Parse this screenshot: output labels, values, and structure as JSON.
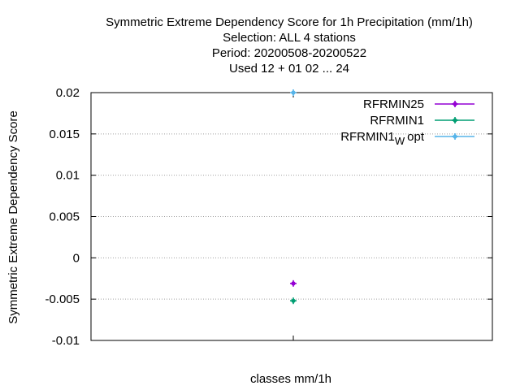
{
  "chart_data": {
    "type": "scatter",
    "title": [
      "Symmetric Extreme Dependency Score  for 1h Precipitation (mm/1h)",
      "Selection: ALL      4 stations",
      "Period: 20200508-20200522",
      "Used  12 + 01 02 ... 24"
    ],
    "xlabel": "classes mm/1h",
    "ylabel": "Symmetric Extreme Dependency Score",
    "ylim": [
      -0.01,
      0.02
    ],
    "yticks": [
      -0.01,
      -0.005,
      0,
      0.005,
      0.01,
      0.015,
      0.02
    ],
    "ytick_labels": [
      "-0.01",
      "-0.005",
      "0",
      "0.005",
      "0.01",
      "0.015",
      "0.02"
    ],
    "grid": true,
    "legend_position": "top-right",
    "series": [
      {
        "name": "RFRMIN25",
        "name_sub": "",
        "name_suffix": "",
        "color": "#9400d3",
        "values": [
          -0.0031
        ]
      },
      {
        "name": "RFRMIN1",
        "name_sub": "",
        "name_suffix": "",
        "color": "#009e73",
        "values": [
          -0.0052
        ]
      },
      {
        "name": "RFRMIN1",
        "name_sub": "W",
        "name_suffix": "opt",
        "color": "#56b4e9",
        "values": [
          0.02
        ]
      }
    ]
  }
}
